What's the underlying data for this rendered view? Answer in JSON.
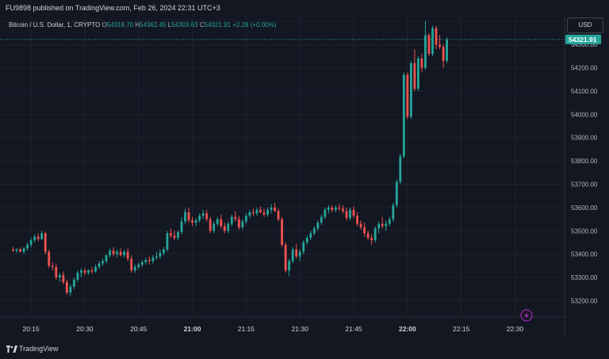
{
  "header": {
    "caption": "FU9898 published on TradingView.com, Feb 26, 2024 22:31 UTC+3"
  },
  "legend": {
    "symbol": "Bitcoin / U.S. Dollar, 1, CRYPTO",
    "open_label": "O",
    "open": "54318.70",
    "high_label": "H",
    "high": "54362.45",
    "low_label": "L",
    "low": "54303.63",
    "close_label": "C",
    "close": "54321.91",
    "change": "+2.28 (+0.00%)"
  },
  "currency_button": "USD",
  "branding": {
    "name": "TradingView",
    "logo_icon": "tradingview-logo-icon"
  },
  "colors": {
    "up": "#26a69a",
    "down": "#ef5350",
    "background": "#131722",
    "grid": "#1e222d",
    "last_price": "#26a69a"
  },
  "chart_data": {
    "type": "candlestick",
    "price_axis_ticks": [
      "54400.00",
      "54300.00",
      "54200.00",
      "54100.00",
      "54000.00",
      "53900.00",
      "53800.00",
      "53700.00",
      "53600.00",
      "53500.00",
      "53400.00",
      "53300.00",
      "53200.00"
    ],
    "time_axis_ticks": [
      "20:15",
      "20:30",
      "20:45",
      "21:00",
      "21:15",
      "21:30",
      "21:45",
      "22:00",
      "22:15",
      "22:30"
    ],
    "bold_time_ticks": [
      "21:00",
      "22:00"
    ],
    "y_range": [
      53130,
      54430
    ],
    "last_price_label": "54321.91",
    "last_price": 54321.91,
    "time_start": "20:09",
    "time_end": "22:31",
    "candles": [
      {
        "t": "20:10",
        "o": 53420,
        "h": 53430,
        "l": 53410,
        "c": 53415
      },
      {
        "t": "20:11",
        "o": 53415,
        "h": 53425,
        "l": 53405,
        "c": 53420
      },
      {
        "t": "20:12",
        "o": 53420,
        "h": 53428,
        "l": 53408,
        "c": 53410
      },
      {
        "t": "20:13",
        "o": 53410,
        "h": 53430,
        "l": 53400,
        "c": 53425
      },
      {
        "t": "20:14",
        "o": 53425,
        "h": 53450,
        "l": 53415,
        "c": 53440
      },
      {
        "t": "20:15",
        "o": 53440,
        "h": 53470,
        "l": 53430,
        "c": 53460
      },
      {
        "t": "20:16",
        "o": 53460,
        "h": 53485,
        "l": 53450,
        "c": 53475
      },
      {
        "t": "20:17",
        "o": 53475,
        "h": 53490,
        "l": 53455,
        "c": 53465
      },
      {
        "t": "20:18",
        "o": 53465,
        "h": 53500,
        "l": 53460,
        "c": 53490
      },
      {
        "t": "20:19",
        "o": 53490,
        "h": 53495,
        "l": 53400,
        "c": 53410
      },
      {
        "t": "20:20",
        "o": 53410,
        "h": 53420,
        "l": 53340,
        "c": 53350
      },
      {
        "t": "20:21",
        "o": 53350,
        "h": 53365,
        "l": 53330,
        "c": 53345
      },
      {
        "t": "20:22",
        "o": 53345,
        "h": 53360,
        "l": 53290,
        "c": 53300
      },
      {
        "t": "20:23",
        "o": 53300,
        "h": 53320,
        "l": 53280,
        "c": 53310
      },
      {
        "t": "20:24",
        "o": 53310,
        "h": 53325,
        "l": 53270,
        "c": 53280
      },
      {
        "t": "20:25",
        "o": 53280,
        "h": 53290,
        "l": 53225,
        "c": 53235
      },
      {
        "t": "20:26",
        "o": 53235,
        "h": 53270,
        "l": 53220,
        "c": 53260
      },
      {
        "t": "20:27",
        "o": 53260,
        "h": 53300,
        "l": 53250,
        "c": 53290
      },
      {
        "t": "20:28",
        "o": 53290,
        "h": 53330,
        "l": 53280,
        "c": 53320
      },
      {
        "t": "20:29",
        "o": 53320,
        "h": 53340,
        "l": 53300,
        "c": 53330
      },
      {
        "t": "20:30",
        "o": 53330,
        "h": 53340,
        "l": 53310,
        "c": 53320
      },
      {
        "t": "20:31",
        "o": 53320,
        "h": 53335,
        "l": 53310,
        "c": 53330
      },
      {
        "t": "20:32",
        "o": 53330,
        "h": 53345,
        "l": 53315,
        "c": 53325
      },
      {
        "t": "20:33",
        "o": 53325,
        "h": 53355,
        "l": 53320,
        "c": 53345
      },
      {
        "t": "20:34",
        "o": 53345,
        "h": 53370,
        "l": 53335,
        "c": 53360
      },
      {
        "t": "20:35",
        "o": 53360,
        "h": 53380,
        "l": 53350,
        "c": 53370
      },
      {
        "t": "20:36",
        "o": 53370,
        "h": 53400,
        "l": 53360,
        "c": 53395
      },
      {
        "t": "20:37",
        "o": 53395,
        "h": 53425,
        "l": 53385,
        "c": 53415
      },
      {
        "t": "20:38",
        "o": 53415,
        "h": 53430,
        "l": 53390,
        "c": 53400
      },
      {
        "t": "20:39",
        "o": 53400,
        "h": 53420,
        "l": 53385,
        "c": 53410
      },
      {
        "t": "20:40",
        "o": 53410,
        "h": 53425,
        "l": 53390,
        "c": 53395
      },
      {
        "t": "20:41",
        "o": 53395,
        "h": 53420,
        "l": 53385,
        "c": 53410
      },
      {
        "t": "20:42",
        "o": 53410,
        "h": 53425,
        "l": 53370,
        "c": 53380
      },
      {
        "t": "20:43",
        "o": 53380,
        "h": 53395,
        "l": 53320,
        "c": 53330
      },
      {
        "t": "20:44",
        "o": 53330,
        "h": 53355,
        "l": 53320,
        "c": 53345
      },
      {
        "t": "20:45",
        "o": 53345,
        "h": 53365,
        "l": 53335,
        "c": 53355
      },
      {
        "t": "20:46",
        "o": 53355,
        "h": 53375,
        "l": 53345,
        "c": 53365
      },
      {
        "t": "20:47",
        "o": 53365,
        "h": 53385,
        "l": 53355,
        "c": 53375
      },
      {
        "t": "20:48",
        "o": 53375,
        "h": 53390,
        "l": 53355,
        "c": 53370
      },
      {
        "t": "20:49",
        "o": 53370,
        "h": 53395,
        "l": 53360,
        "c": 53385
      },
      {
        "t": "20:50",
        "o": 53385,
        "h": 53410,
        "l": 53375,
        "c": 53390
      },
      {
        "t": "20:51",
        "o": 53390,
        "h": 53420,
        "l": 53380,
        "c": 53405
      },
      {
        "t": "20:52",
        "o": 53405,
        "h": 53430,
        "l": 53395,
        "c": 53420
      },
      {
        "t": "20:53",
        "o": 53420,
        "h": 53500,
        "l": 53410,
        "c": 53490
      },
      {
        "t": "20:54",
        "o": 53490,
        "h": 53510,
        "l": 53470,
        "c": 53480
      },
      {
        "t": "20:55",
        "o": 53480,
        "h": 53500,
        "l": 53460,
        "c": 53470
      },
      {
        "t": "20:56",
        "o": 53470,
        "h": 53500,
        "l": 53460,
        "c": 53495
      },
      {
        "t": "20:57",
        "o": 53495,
        "h": 53560,
        "l": 53485,
        "c": 53540
      },
      {
        "t": "20:58",
        "o": 53540,
        "h": 53595,
        "l": 53530,
        "c": 53580
      },
      {
        "t": "20:59",
        "o": 53580,
        "h": 53600,
        "l": 53535,
        "c": 53545
      },
      {
        "t": "21:00",
        "o": 53545,
        "h": 53560,
        "l": 53520,
        "c": 53535
      },
      {
        "t": "21:01",
        "o": 53535,
        "h": 53555,
        "l": 53520,
        "c": 53545
      },
      {
        "t": "21:02",
        "o": 53545,
        "h": 53575,
        "l": 53535,
        "c": 53565
      },
      {
        "t": "21:03",
        "o": 53565,
        "h": 53590,
        "l": 53550,
        "c": 53575
      },
      {
        "t": "21:04",
        "o": 53575,
        "h": 53590,
        "l": 53540,
        "c": 53550
      },
      {
        "t": "21:05",
        "o": 53550,
        "h": 53560,
        "l": 53490,
        "c": 53500
      },
      {
        "t": "21:06",
        "o": 53500,
        "h": 53540,
        "l": 53490,
        "c": 53530
      },
      {
        "t": "21:07",
        "o": 53530,
        "h": 53560,
        "l": 53520,
        "c": 53550
      },
      {
        "t": "21:08",
        "o": 53550,
        "h": 53570,
        "l": 53510,
        "c": 53520
      },
      {
        "t": "21:09",
        "o": 53520,
        "h": 53535,
        "l": 53490,
        "c": 53500
      },
      {
        "t": "21:10",
        "o": 53500,
        "h": 53540,
        "l": 53490,
        "c": 53530
      },
      {
        "t": "21:11",
        "o": 53530,
        "h": 53570,
        "l": 53520,
        "c": 53560
      },
      {
        "t": "21:12",
        "o": 53560,
        "h": 53585,
        "l": 53540,
        "c": 53550
      },
      {
        "t": "21:13",
        "o": 53550,
        "h": 53565,
        "l": 53505,
        "c": 53515
      },
      {
        "t": "21:14",
        "o": 53515,
        "h": 53550,
        "l": 53505,
        "c": 53540
      },
      {
        "t": "21:15",
        "o": 53540,
        "h": 53575,
        "l": 53530,
        "c": 53565
      },
      {
        "t": "21:16",
        "o": 53565,
        "h": 53590,
        "l": 53555,
        "c": 53580
      },
      {
        "t": "21:17",
        "o": 53580,
        "h": 53595,
        "l": 53565,
        "c": 53575
      },
      {
        "t": "21:18",
        "o": 53575,
        "h": 53600,
        "l": 53565,
        "c": 53590
      },
      {
        "t": "21:19",
        "o": 53590,
        "h": 53605,
        "l": 53575,
        "c": 53580
      },
      {
        "t": "21:20",
        "o": 53580,
        "h": 53595,
        "l": 53560,
        "c": 53570
      },
      {
        "t": "21:21",
        "o": 53570,
        "h": 53600,
        "l": 53560,
        "c": 53590
      },
      {
        "t": "21:22",
        "o": 53590,
        "h": 53615,
        "l": 53575,
        "c": 53600
      },
      {
        "t": "21:23",
        "o": 53600,
        "h": 53620,
        "l": 53580,
        "c": 53585
      },
      {
        "t": "21:24",
        "o": 53585,
        "h": 53595,
        "l": 53540,
        "c": 53550
      },
      {
        "t": "21:25",
        "o": 53550,
        "h": 53560,
        "l": 53430,
        "c": 53440
      },
      {
        "t": "21:26",
        "o": 53440,
        "h": 53450,
        "l": 53320,
        "c": 53330
      },
      {
        "t": "21:27",
        "o": 53330,
        "h": 53380,
        "l": 53305,
        "c": 53370
      },
      {
        "t": "21:28",
        "o": 53370,
        "h": 53430,
        "l": 53360,
        "c": 53420
      },
      {
        "t": "21:29",
        "o": 53420,
        "h": 53445,
        "l": 53380,
        "c": 53390
      },
      {
        "t": "21:30",
        "o": 53390,
        "h": 53420,
        "l": 53370,
        "c": 53410
      },
      {
        "t": "21:31",
        "o": 53410,
        "h": 53460,
        "l": 53400,
        "c": 53450
      },
      {
        "t": "21:32",
        "o": 53450,
        "h": 53480,
        "l": 53440,
        "c": 53470
      },
      {
        "t": "21:33",
        "o": 53470,
        "h": 53500,
        "l": 53460,
        "c": 53490
      },
      {
        "t": "21:34",
        "o": 53490,
        "h": 53520,
        "l": 53480,
        "c": 53510
      },
      {
        "t": "21:35",
        "o": 53510,
        "h": 53545,
        "l": 53500,
        "c": 53535
      },
      {
        "t": "21:36",
        "o": 53535,
        "h": 53570,
        "l": 53525,
        "c": 53560
      },
      {
        "t": "21:37",
        "o": 53560,
        "h": 53600,
        "l": 53550,
        "c": 53590
      },
      {
        "t": "21:38",
        "o": 53590,
        "h": 53610,
        "l": 53575,
        "c": 53600
      },
      {
        "t": "21:39",
        "o": 53600,
        "h": 53610,
        "l": 53580,
        "c": 53590
      },
      {
        "t": "21:40",
        "o": 53590,
        "h": 53610,
        "l": 53580,
        "c": 53600
      },
      {
        "t": "21:41",
        "o": 53600,
        "h": 53615,
        "l": 53585,
        "c": 53595
      },
      {
        "t": "21:42",
        "o": 53595,
        "h": 53610,
        "l": 53575,
        "c": 53585
      },
      {
        "t": "21:43",
        "o": 53585,
        "h": 53600,
        "l": 53545,
        "c": 53555
      },
      {
        "t": "21:44",
        "o": 53555,
        "h": 53600,
        "l": 53545,
        "c": 53590
      },
      {
        "t": "21:45",
        "o": 53590,
        "h": 53605,
        "l": 53555,
        "c": 53565
      },
      {
        "t": "21:46",
        "o": 53565,
        "h": 53580,
        "l": 53520,
        "c": 53530
      },
      {
        "t": "21:47",
        "o": 53530,
        "h": 53545,
        "l": 53505,
        "c": 53515
      },
      {
        "t": "21:48",
        "o": 53515,
        "h": 53535,
        "l": 53475,
        "c": 53490
      },
      {
        "t": "21:49",
        "o": 53490,
        "h": 53500,
        "l": 53460,
        "c": 53470
      },
      {
        "t": "21:50",
        "o": 53470,
        "h": 53485,
        "l": 53440,
        "c": 53460
      },
      {
        "t": "21:51",
        "o": 53460,
        "h": 53520,
        "l": 53450,
        "c": 53510
      },
      {
        "t": "21:52",
        "o": 53510,
        "h": 53540,
        "l": 53490,
        "c": 53530
      },
      {
        "t": "21:53",
        "o": 53530,
        "h": 53560,
        "l": 53510,
        "c": 53520
      },
      {
        "t": "21:54",
        "o": 53520,
        "h": 53545,
        "l": 53500,
        "c": 53530
      },
      {
        "t": "21:55",
        "o": 53530,
        "h": 53560,
        "l": 53520,
        "c": 53550
      },
      {
        "t": "21:56",
        "o": 53550,
        "h": 53620,
        "l": 53540,
        "c": 53610
      },
      {
        "t": "21:57",
        "o": 53610,
        "h": 53720,
        "l": 53600,
        "c": 53710
      },
      {
        "t": "21:58",
        "o": 53710,
        "h": 53830,
        "l": 53700,
        "c": 53820
      },
      {
        "t": "21:59",
        "o": 53820,
        "h": 54180,
        "l": 53810,
        "c": 54170
      },
      {
        "t": "22:00",
        "o": 54170,
        "h": 54180,
        "l": 53980,
        "c": 53990
      },
      {
        "t": "22:01",
        "o": 53990,
        "h": 54230,
        "l": 53980,
        "c": 54220
      },
      {
        "t": "22:02",
        "o": 54220,
        "h": 54280,
        "l": 54100,
        "c": 54110
      },
      {
        "t": "22:03",
        "o": 54110,
        "h": 54250,
        "l": 54100,
        "c": 54240
      },
      {
        "t": "22:04",
        "o": 54240,
        "h": 54260,
        "l": 54180,
        "c": 54200
      },
      {
        "t": "22:05",
        "o": 54200,
        "h": 54400,
        "l": 54190,
        "c": 54340
      },
      {
        "t": "22:06",
        "o": 54340,
        "h": 54350,
        "l": 54250,
        "c": 54260
      },
      {
        "t": "22:07",
        "o": 54260,
        "h": 54380,
        "l": 54250,
        "c": 54370
      },
      {
        "t": "22:08",
        "o": 54370,
        "h": 54380,
        "l": 54280,
        "c": 54300
      },
      {
        "t": "22:09",
        "o": 54300,
        "h": 54340,
        "l": 54280,
        "c": 54290
      },
      {
        "t": "22:10",
        "o": 54290,
        "h": 54300,
        "l": 54200,
        "c": 54230
      },
      {
        "t": "22:11",
        "o": 54230,
        "h": 54330,
        "l": 54220,
        "c": 54320
      }
    ]
  }
}
